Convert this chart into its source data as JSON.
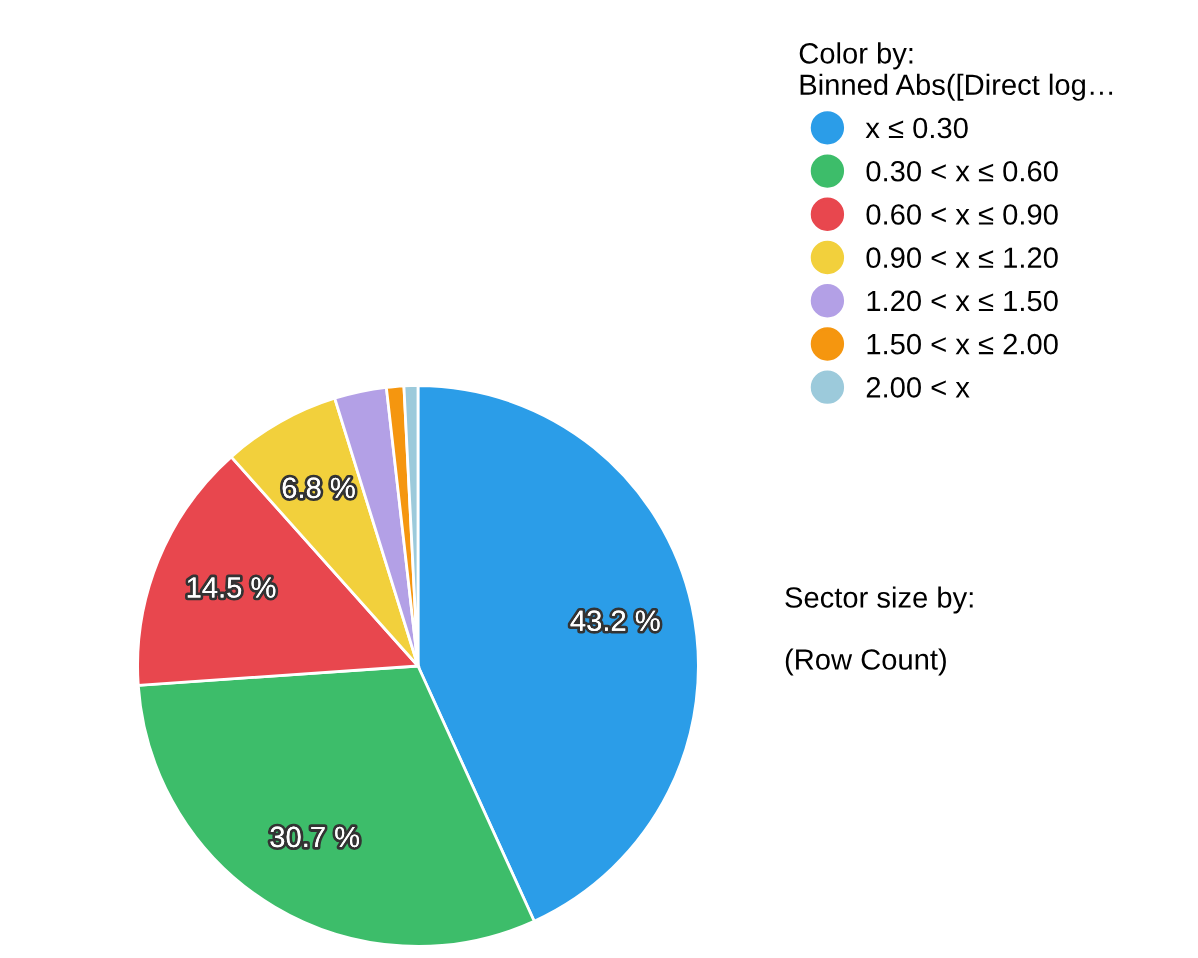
{
  "chart_data": {
    "type": "pie",
    "legend_title": "Color by:\nBinned Abs([Direct log…",
    "categories": [
      "x ≤ 0.30",
      "0.30 < x ≤ 0.60",
      "0.60 < x ≤ 0.90",
      "0.90 < x ≤ 1.20",
      "1.20 < x ≤ 1.50",
      "1.50 < x ≤ 2.00",
      "2.00 < x"
    ],
    "values": [
      43.2,
      30.7,
      14.5,
      6.8,
      3.0,
      1.0,
      0.8
    ],
    "value_labels": [
      "43.2 %",
      "30.7 %",
      "14.5 %",
      "6.8 %",
      null,
      null,
      null
    ],
    "colors": [
      "#2b9de8",
      "#3dbd6a",
      "#e8474e",
      "#f2d03c",
      "#b3a0e6",
      "#f5960f",
      "#9ccadb"
    ],
    "legend": "right",
    "annotations": [
      "Sector size by:",
      "(Row Count)"
    ]
  }
}
